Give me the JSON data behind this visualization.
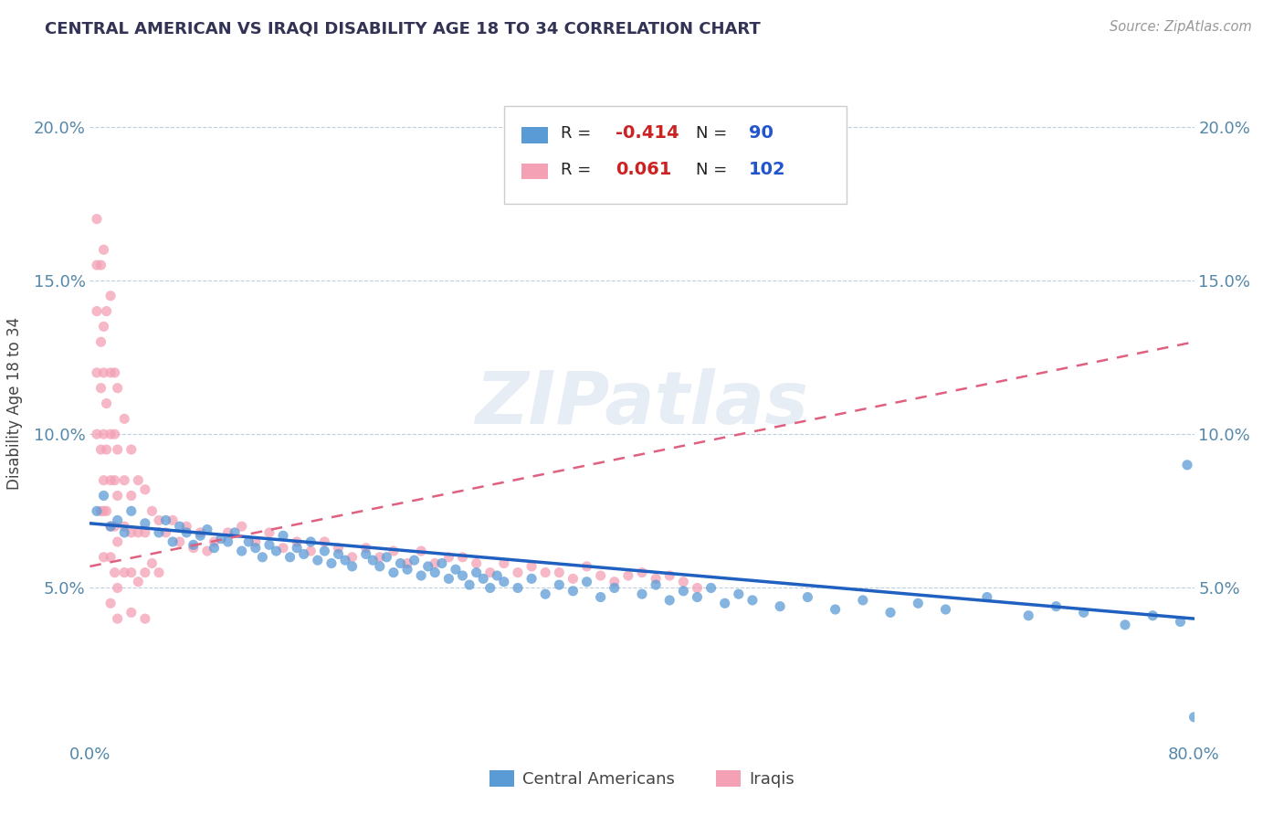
{
  "title": "CENTRAL AMERICAN VS IRAQI DISABILITY AGE 18 TO 34 CORRELATION CHART",
  "source_text": "Source: ZipAtlas.com",
  "ylabel": "Disability Age 18 to 34",
  "watermark": "ZIPatlas",
  "xlim": [
    0.0,
    0.8
  ],
  "ylim": [
    0.0,
    0.22
  ],
  "xticks": [
    0.0,
    0.1,
    0.2,
    0.3,
    0.4,
    0.5,
    0.6,
    0.7,
    0.8
  ],
  "xticklabels": [
    "0.0%",
    "",
    "",
    "",
    "",
    "",
    "",
    "",
    "80.0%"
  ],
  "yticks": [
    0.0,
    0.05,
    0.1,
    0.15,
    0.2
  ],
  "yticklabels_left": [
    "",
    "5.0%",
    "10.0%",
    "15.0%",
    "20.0%"
  ],
  "yticklabels_right": [
    "",
    "5.0%",
    "10.0%",
    "15.0%",
    "20.0%"
  ],
  "blue_color": "#5b9bd5",
  "pink_color": "#f4a0b5",
  "blue_line_color": "#2060c0",
  "pink_line_color": "#e06080",
  "blue_R": "-0.414",
  "blue_N": "90",
  "pink_R": "0.061",
  "pink_N": "102",
  "legend_label_blue": "Central Americans",
  "legend_label_pink": "Iraqis",
  "blue_trend_x": [
    0.0,
    0.8
  ],
  "blue_trend_y": [
    0.071,
    0.04
  ],
  "pink_trend_x": [
    0.0,
    0.8
  ],
  "pink_trend_y": [
    0.057,
    0.13
  ],
  "blue_scatter_x": [
    0.005,
    0.01,
    0.015,
    0.02,
    0.025,
    0.03,
    0.04,
    0.05,
    0.055,
    0.06,
    0.065,
    0.07,
    0.075,
    0.08,
    0.085,
    0.09,
    0.095,
    0.1,
    0.105,
    0.11,
    0.115,
    0.12,
    0.125,
    0.13,
    0.135,
    0.14,
    0.145,
    0.15,
    0.155,
    0.16,
    0.165,
    0.17,
    0.175,
    0.18,
    0.185,
    0.19,
    0.2,
    0.205,
    0.21,
    0.215,
    0.22,
    0.225,
    0.23,
    0.235,
    0.24,
    0.245,
    0.25,
    0.255,
    0.26,
    0.265,
    0.27,
    0.275,
    0.28,
    0.285,
    0.29,
    0.295,
    0.3,
    0.31,
    0.32,
    0.33,
    0.34,
    0.35,
    0.36,
    0.37,
    0.38,
    0.4,
    0.41,
    0.42,
    0.43,
    0.44,
    0.45,
    0.46,
    0.47,
    0.48,
    0.5,
    0.52,
    0.54,
    0.56,
    0.58,
    0.6,
    0.62,
    0.65,
    0.68,
    0.7,
    0.72,
    0.75,
    0.77,
    0.79,
    0.795,
    0.8
  ],
  "blue_scatter_y": [
    0.075,
    0.08,
    0.07,
    0.072,
    0.068,
    0.075,
    0.071,
    0.068,
    0.072,
    0.065,
    0.07,
    0.068,
    0.064,
    0.067,
    0.069,
    0.063,
    0.066,
    0.065,
    0.068,
    0.062,
    0.065,
    0.063,
    0.06,
    0.064,
    0.062,
    0.067,
    0.06,
    0.063,
    0.061,
    0.065,
    0.059,
    0.062,
    0.058,
    0.061,
    0.059,
    0.057,
    0.061,
    0.059,
    0.057,
    0.06,
    0.055,
    0.058,
    0.056,
    0.059,
    0.054,
    0.057,
    0.055,
    0.058,
    0.053,
    0.056,
    0.054,
    0.051,
    0.055,
    0.053,
    0.05,
    0.054,
    0.052,
    0.05,
    0.053,
    0.048,
    0.051,
    0.049,
    0.052,
    0.047,
    0.05,
    0.048,
    0.051,
    0.046,
    0.049,
    0.047,
    0.05,
    0.045,
    0.048,
    0.046,
    0.044,
    0.047,
    0.043,
    0.046,
    0.042,
    0.045,
    0.043,
    0.047,
    0.041,
    0.044,
    0.042,
    0.038,
    0.041,
    0.039,
    0.09,
    0.008
  ],
  "pink_scatter_x": [
    0.005,
    0.005,
    0.005,
    0.005,
    0.005,
    0.008,
    0.008,
    0.008,
    0.008,
    0.008,
    0.01,
    0.01,
    0.01,
    0.01,
    0.01,
    0.01,
    0.01,
    0.012,
    0.012,
    0.012,
    0.012,
    0.015,
    0.015,
    0.015,
    0.015,
    0.015,
    0.015,
    0.015,
    0.018,
    0.018,
    0.018,
    0.018,
    0.018,
    0.02,
    0.02,
    0.02,
    0.02,
    0.02,
    0.02,
    0.025,
    0.025,
    0.025,
    0.025,
    0.03,
    0.03,
    0.03,
    0.03,
    0.03,
    0.035,
    0.035,
    0.035,
    0.04,
    0.04,
    0.04,
    0.04,
    0.045,
    0.045,
    0.05,
    0.05,
    0.055,
    0.06,
    0.065,
    0.07,
    0.075,
    0.08,
    0.085,
    0.09,
    0.1,
    0.11,
    0.12,
    0.13,
    0.14,
    0.15,
    0.16,
    0.17,
    0.18,
    0.19,
    0.2,
    0.21,
    0.22,
    0.23,
    0.24,
    0.25,
    0.26,
    0.27,
    0.28,
    0.29,
    0.3,
    0.31,
    0.32,
    0.33,
    0.34,
    0.35,
    0.36,
    0.37,
    0.38,
    0.39,
    0.4,
    0.41,
    0.42,
    0.43,
    0.44
  ],
  "pink_scatter_y": [
    0.17,
    0.155,
    0.14,
    0.12,
    0.1,
    0.155,
    0.13,
    0.115,
    0.095,
    0.075,
    0.16,
    0.135,
    0.12,
    0.1,
    0.085,
    0.075,
    0.06,
    0.14,
    0.11,
    0.095,
    0.075,
    0.145,
    0.12,
    0.1,
    0.085,
    0.07,
    0.06,
    0.045,
    0.12,
    0.1,
    0.085,
    0.07,
    0.055,
    0.115,
    0.095,
    0.08,
    0.065,
    0.05,
    0.04,
    0.105,
    0.085,
    0.07,
    0.055,
    0.095,
    0.08,
    0.068,
    0.055,
    0.042,
    0.085,
    0.068,
    0.052,
    0.082,
    0.068,
    0.055,
    0.04,
    0.075,
    0.058,
    0.072,
    0.055,
    0.068,
    0.072,
    0.065,
    0.07,
    0.063,
    0.068,
    0.062,
    0.065,
    0.068,
    0.07,
    0.065,
    0.068,
    0.063,
    0.065,
    0.062,
    0.065,
    0.063,
    0.06,
    0.063,
    0.06,
    0.062,
    0.058,
    0.062,
    0.058,
    0.06,
    0.06,
    0.058,
    0.055,
    0.058,
    0.055,
    0.057,
    0.055,
    0.055,
    0.053,
    0.057,
    0.054,
    0.052,
    0.054,
    0.055,
    0.053,
    0.054,
    0.052,
    0.05
  ]
}
